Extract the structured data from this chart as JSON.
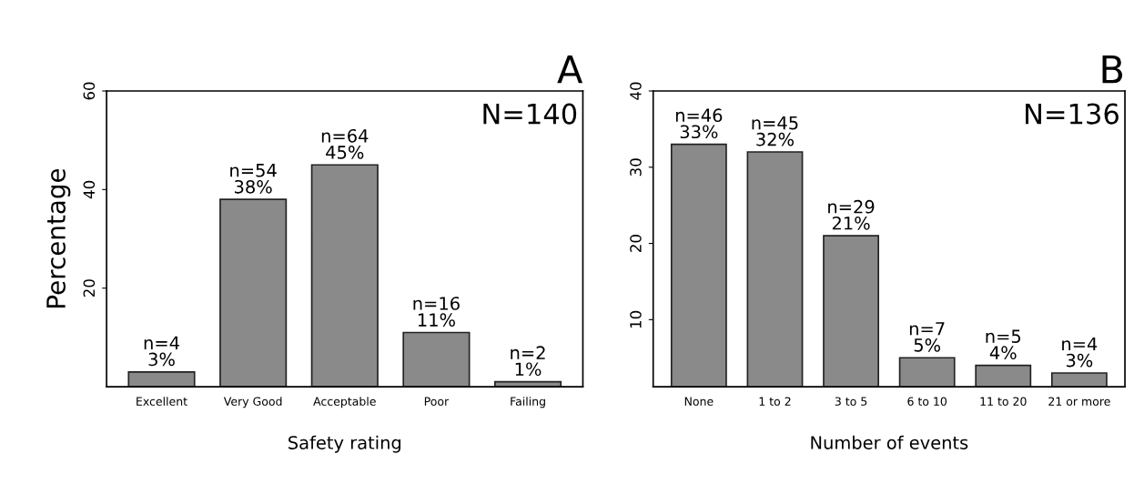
{
  "chart_data": [
    {
      "type": "bar",
      "title": "A",
      "xlabel": "Safety rating",
      "ylabel": "Percentage",
      "categories": [
        "Excellent",
        "Very Good",
        "Acceptable",
        "Poor",
        "Failing"
      ],
      "values": [
        3,
        38,
        45,
        11,
        1
      ],
      "color": "#8a8a8a",
      "value_labels": [
        "n=4\n3%",
        "n=54\n38%",
        "n=64\n45%",
        "n=16\n11%",
        "n=2\n1%"
      ],
      "ylim": [
        0,
        60
      ],
      "yticks": [
        20,
        40,
        60
      ],
      "annotations": [
        "N=140"
      ],
      "grid": false
    },
    {
      "type": "bar",
      "title": "B",
      "xlabel": "Number of events",
      "categories": [
        "None",
        "1 to 2",
        "3 to 5",
        "6 to 10",
        "11 to 20",
        "21 or more"
      ],
      "values": [
        33,
        32,
        21,
        5,
        4,
        3
      ],
      "color": "#8a8a8a",
      "value_labels": [
        "n=46\n33%",
        "n=45\n32%",
        "n=29\n21%",
        "n=7\n5%",
        "n=5\n4%",
        "n=4\n3%"
      ],
      "ylim": [
        1.2,
        40
      ],
      "yticks": [
        10,
        20,
        30,
        40
      ],
      "annotations": [
        "N=136"
      ],
      "grid": false
    }
  ]
}
